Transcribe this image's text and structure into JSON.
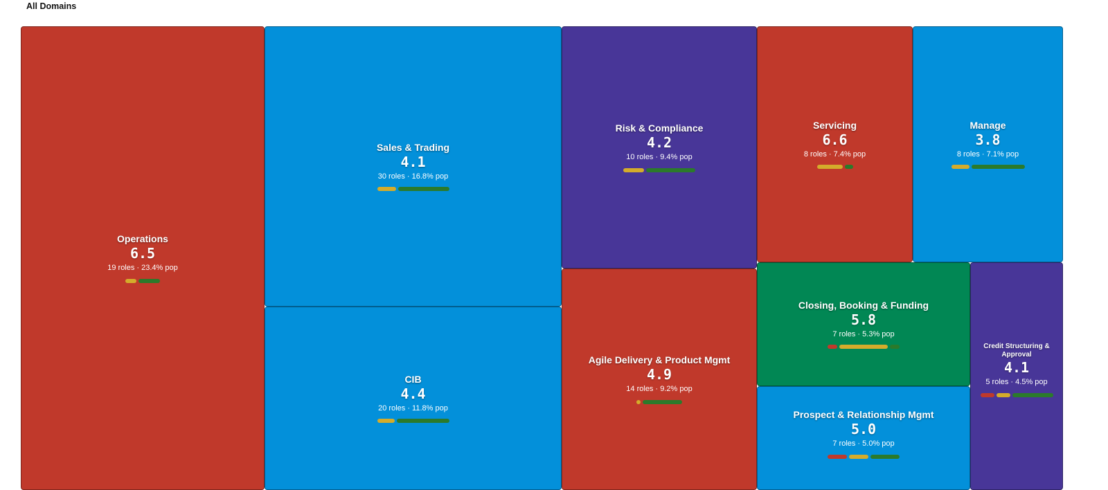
{
  "header": {
    "title": "All Domains"
  },
  "colors": {
    "red": "#c0392b",
    "blue": "#0390da",
    "purple": "#483698",
    "green": "#018754",
    "seg_red": "#c0392b",
    "seg_yellow": "#d4ac2b",
    "seg_green": "#2b7a2b"
  },
  "chart_data": {
    "type": "treemap",
    "title": "All Domains",
    "items": [
      {
        "name": "Operations",
        "score": "6.5",
        "meta": "19 roles · 23.4% pop",
        "color": "red",
        "segments": [
          {
            "color": "seg_yellow",
            "value": 16
          },
          {
            "color": "seg_green",
            "value": 31
          }
        ]
      },
      {
        "name": "Sales & Trading",
        "score": "4.1",
        "meta": "30 roles · 16.8% pop",
        "color": "blue",
        "segments": [
          {
            "color": "seg_yellow",
            "value": 27
          },
          {
            "color": "seg_green",
            "value": 74
          }
        ]
      },
      {
        "name": "CIB",
        "score": "4.4",
        "meta": "20 roles · 11.8% pop",
        "color": "blue",
        "segments": [
          {
            "color": "seg_yellow",
            "value": 25
          },
          {
            "color": "seg_green",
            "value": 76
          }
        ]
      },
      {
        "name": "Risk & Compliance",
        "score": "4.2",
        "meta": "10 roles · 9.4% pop",
        "color": "purple",
        "segments": [
          {
            "color": "seg_yellow",
            "value": 30
          },
          {
            "color": "seg_green",
            "value": 71
          }
        ]
      },
      {
        "name": "Agile Delivery & Product Mgmt",
        "score": "4.9",
        "meta": "14 roles · 9.2% pop",
        "color": "red",
        "segments": [
          {
            "color": "seg_yellow",
            "value": 6
          },
          {
            "color": "seg_green",
            "value": 57
          }
        ]
      },
      {
        "name": "Servicing",
        "score": "6.6",
        "meta": "8 roles · 7.4% pop",
        "color": "red",
        "segments": [
          {
            "color": "seg_yellow",
            "value": 37
          },
          {
            "color": "seg_green",
            "value": 12
          }
        ]
      },
      {
        "name": "Manage",
        "score": "3.8",
        "meta": "8 roles · 7.1% pop",
        "color": "blue",
        "segments": [
          {
            "color": "seg_yellow",
            "value": 26
          },
          {
            "color": "seg_green",
            "value": 77
          }
        ]
      },
      {
        "name": "Closing, Booking & Funding",
        "score": "5.8",
        "meta": "7 roles · 5.3% pop",
        "color": "green",
        "segments": [
          {
            "color": "seg_red",
            "value": 14
          },
          {
            "color": "seg_yellow",
            "value": 70
          },
          {
            "color": "seg_green",
            "value": 14
          }
        ]
      },
      {
        "name": "Prospect & Relationship Mgmt",
        "score": "5.0",
        "meta": "7 roles · 5.0% pop",
        "color": "blue",
        "segments": [
          {
            "color": "seg_red",
            "value": 28
          },
          {
            "color": "seg_yellow",
            "value": 28
          },
          {
            "color": "seg_green",
            "value": 42
          }
        ]
      },
      {
        "name": "Credit Structuring & Approval",
        "score": "4.1",
        "meta": "5 roles · 4.5% pop",
        "color": "purple",
        "segments": [
          {
            "color": "seg_red",
            "value": 20
          },
          {
            "color": "seg_yellow",
            "value": 20
          },
          {
            "color": "seg_green",
            "value": 59
          }
        ]
      }
    ]
  }
}
